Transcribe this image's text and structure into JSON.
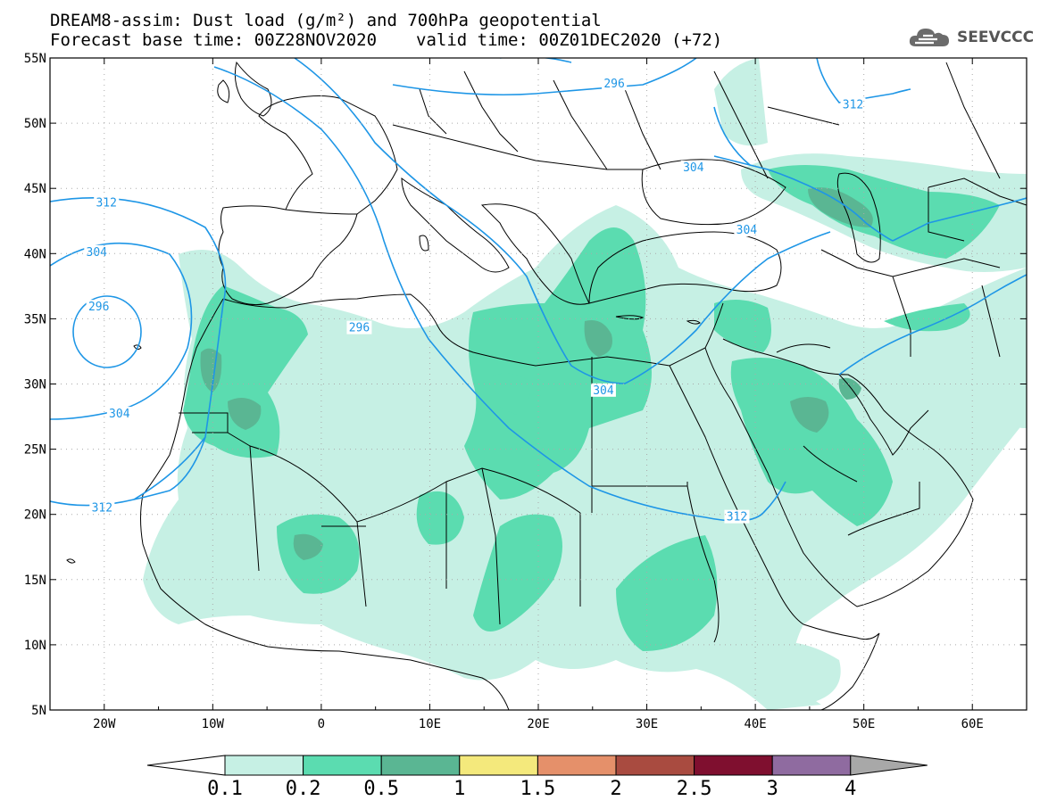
{
  "header": {
    "line1": "DREAM8-assim: Dust load (g/m²) and 700hPa geopotential",
    "base_label": "Forecast base time: 00Z28NOV2020",
    "valid_label": "valid time: 00Z01DEC2020 (+72)"
  },
  "logo": {
    "text": "SEEVCCC",
    "icon": "cloud-icon"
  },
  "map": {
    "lon_range": [
      -25,
      65
    ],
    "lat_range": [
      5,
      55
    ],
    "lat_ticks": [
      "55N",
      "50N",
      "45N",
      "40N",
      "35N",
      "30N",
      "25N",
      "20N",
      "15N",
      "10N",
      "5N"
    ],
    "lon_ticks": [
      "20W",
      "10W",
      "0",
      "10E",
      "20E",
      "30E",
      "40E",
      "50E",
      "60E"
    ],
    "grid": "dotted",
    "contour_color": "#1e96e6",
    "contour_labels": [
      {
        "text": "296",
        "lon": 3.5,
        "lat": 34.3
      },
      {
        "text": "296",
        "lon": 27.0,
        "lat": 53.0
      },
      {
        "text": "312",
        "lon": -19.8,
        "lat": 43.9
      },
      {
        "text": "304",
        "lon": -20.7,
        "lat": 40.1
      },
      {
        "text": "296",
        "lon": -20.5,
        "lat": 35.9
      },
      {
        "text": "304",
        "lon": -18.6,
        "lat": 27.7
      },
      {
        "text": "312",
        "lon": -20.2,
        "lat": 20.5
      },
      {
        "text": "312",
        "lon": 49.0,
        "lat": 51.4
      },
      {
        "text": "304",
        "lon": 34.3,
        "lat": 46.6
      },
      {
        "text": "304",
        "lon": 39.2,
        "lat": 41.8
      },
      {
        "text": "304",
        "lon": 26.0,
        "lat": 29.5
      },
      {
        "text": "312",
        "lon": 38.3,
        "lat": 19.8
      }
    ]
  },
  "colorbar": {
    "levels": [
      "0.1",
      "0.2",
      "0.5",
      "1",
      "1.5",
      "2",
      "2.5",
      "3",
      "4"
    ],
    "colors": [
      "#c6f0e4",
      "#5bdcb0",
      "#5ab693",
      "#f4e97c",
      "#e5906a",
      "#a94b40",
      "#7f0f2f",
      "#8f6ba0",
      "#a8a8a8"
    ]
  }
}
